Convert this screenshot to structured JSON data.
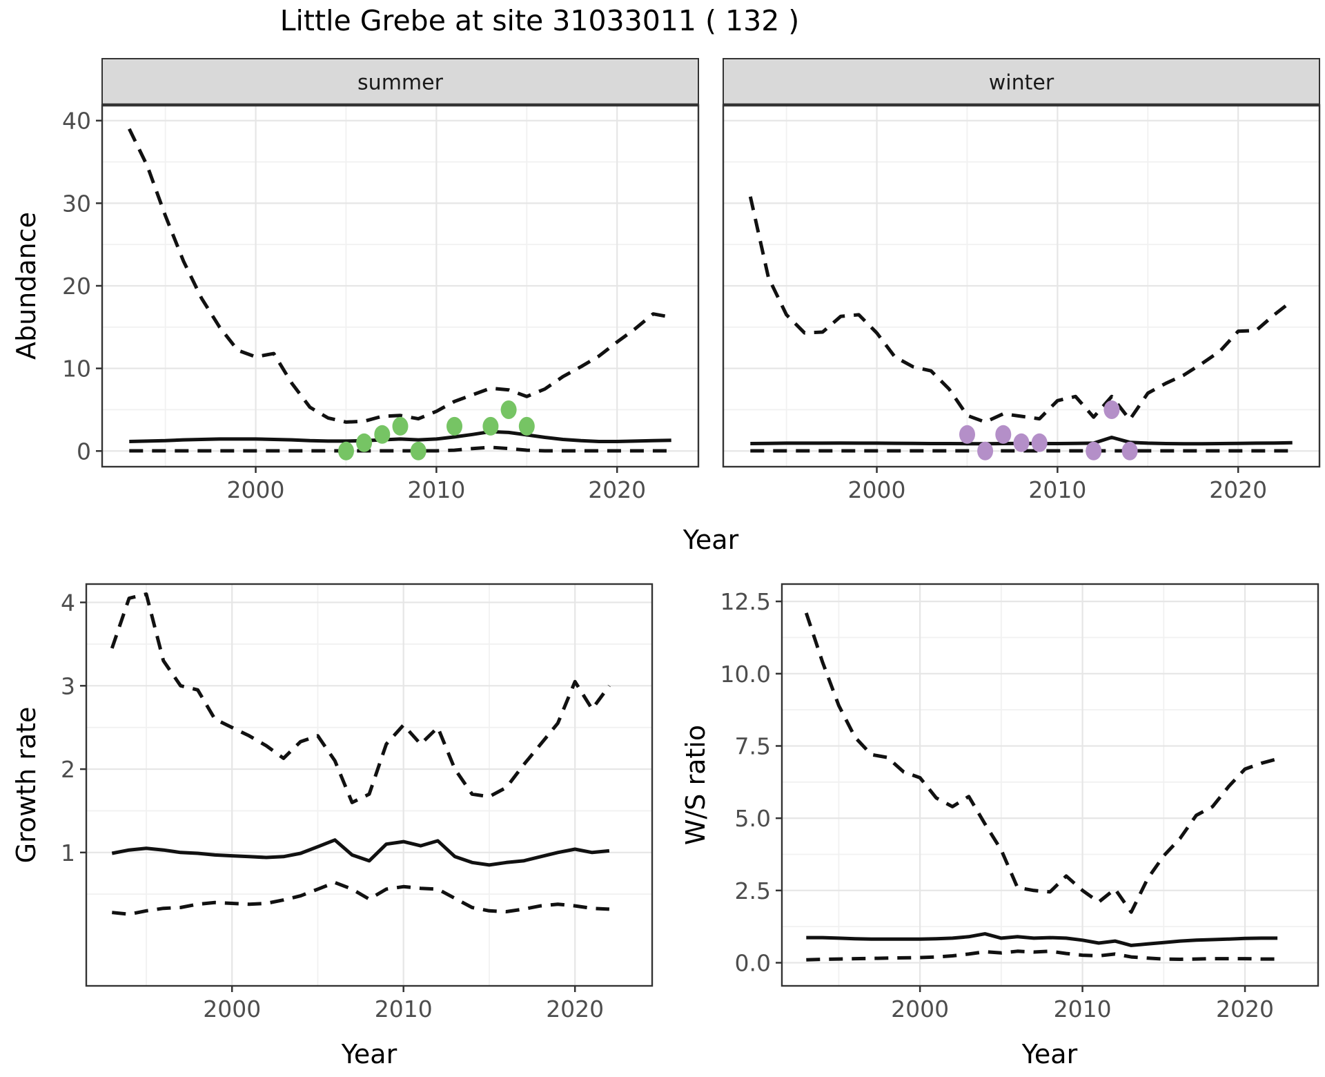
{
  "title": "Little Grebe at site 31033011 ( 132 )",
  "axes": {
    "abundance": "Abundance",
    "year_top": "Year",
    "growth_rate": "Growth rate",
    "ws_ratio": "W/S ratio",
    "year_bottom_left": "Year",
    "year_bottom_right": "Year"
  },
  "colors": {
    "summer_points": "#76c464",
    "winter_points": "#b48fc8",
    "line": "#111111",
    "strip_bg": "#d9d9d9",
    "strip_text": "#1a1a1a",
    "grid_major": "#e6e6e6",
    "grid_minor": "#f1f1f1",
    "border": "#333333",
    "tick_text": "#4d4d4d"
  },
  "chart_data": [
    {
      "id": "abundance-summer",
      "type": "line",
      "facet_label": "summer",
      "ylabel": "Abundance",
      "xlabel": "Year",
      "xlim": [
        1991.5,
        2024.5
      ],
      "ylim": [
        -1.9,
        41.9
      ],
      "x_tick_values": [
        2000,
        2010,
        2020
      ],
      "x_tick_labels": [
        "2000",
        "2010",
        "2020"
      ],
      "x_minor": [
        1995,
        2005,
        2015
      ],
      "y_tick_values": [
        0,
        10,
        20,
        30,
        40
      ],
      "y_tick_labels": [
        "0",
        "10",
        "20",
        "30",
        "40"
      ],
      "y_minor": [
        5,
        15,
        25,
        35
      ],
      "series": [
        {
          "name": "upper-ci",
          "style": "dashed",
          "x": [
            1993,
            1994,
            1995,
            1996,
            1997,
            1998,
            1999,
            2000,
            2001,
            2002,
            2003,
            2004,
            2005,
            2006,
            2007,
            2008,
            2009,
            2010,
            2011,
            2012,
            2013,
            2014,
            2015,
            2016,
            2017,
            2018,
            2019,
            2020,
            2021,
            2022,
            2023
          ],
          "y": [
            39,
            34.5,
            28.5,
            23,
            18.5,
            15,
            12.2,
            11.4,
            11.8,
            8.2,
            5.3,
            4.0,
            3.5,
            3.6,
            4.2,
            4.3,
            3.9,
            4.8,
            6.0,
            6.8,
            7.6,
            7.4,
            6.6,
            7.5,
            9.0,
            10.2,
            11.5,
            13.2,
            14.8,
            16.6,
            16.2
          ]
        },
        {
          "name": "median",
          "style": "solid",
          "x": [
            1993,
            1994,
            1995,
            1996,
            1997,
            1998,
            1999,
            2000,
            2001,
            2002,
            2003,
            2004,
            2005,
            2006,
            2007,
            2008,
            2009,
            2010,
            2011,
            2012,
            2013,
            2014,
            2015,
            2016,
            2017,
            2018,
            2019,
            2020,
            2021,
            2022,
            2023
          ],
          "y": [
            1.15,
            1.2,
            1.25,
            1.35,
            1.4,
            1.45,
            1.45,
            1.45,
            1.4,
            1.35,
            1.25,
            1.2,
            1.2,
            1.25,
            1.35,
            1.45,
            1.35,
            1.45,
            1.7,
            2.0,
            2.35,
            2.25,
            1.95,
            1.65,
            1.4,
            1.25,
            1.15,
            1.15,
            1.2,
            1.25,
            1.3
          ]
        },
        {
          "name": "lower-ci",
          "style": "dashed",
          "x": [
            1993,
            1994,
            1995,
            1996,
            1997,
            1998,
            1999,
            2000,
            2001,
            2002,
            2003,
            2004,
            2005,
            2006,
            2007,
            2008,
            2009,
            2010,
            2011,
            2012,
            2013,
            2014,
            2015,
            2016,
            2017,
            2018,
            2019,
            2020,
            2021,
            2022,
            2023
          ],
          "y": [
            0.02,
            0.02,
            0.02,
            0.02,
            0.02,
            0.02,
            0.02,
            0.02,
            0.02,
            0.02,
            0.02,
            0.02,
            0.02,
            0.02,
            0.02,
            0.02,
            0.02,
            0.02,
            0.1,
            0.3,
            0.45,
            0.3,
            0.1,
            0.02,
            0.02,
            0.02,
            0.02,
            0.02,
            0.02,
            0.02,
            0.02
          ]
        }
      ],
      "points": {
        "name": "observed-counts-summer",
        "color_key": "summer_points",
        "x": [
          2005,
          2006,
          2007,
          2008,
          2009,
          2011,
          2013,
          2014,
          2015
        ],
        "y": [
          0,
          1,
          2,
          3,
          0,
          3,
          3,
          5,
          3
        ]
      }
    },
    {
      "id": "abundance-winter",
      "type": "line",
      "facet_label": "winter",
      "ylabel": "Abundance",
      "xlabel": "Year",
      "xlim": [
        1991.5,
        2024.5
      ],
      "ylim": [
        -1.9,
        41.9
      ],
      "x_tick_values": [
        2000,
        2010,
        2020
      ],
      "x_tick_labels": [
        "2000",
        "2010",
        "2020"
      ],
      "x_minor": [
        1995,
        2005,
        2015
      ],
      "y_tick_values": [
        0,
        10,
        20,
        30,
        40
      ],
      "y_tick_labels": [],
      "y_minor": [
        5,
        15,
        25,
        35
      ],
      "series": [
        {
          "name": "upper-ci",
          "style": "dashed",
          "x": [
            1993,
            1994,
            1995,
            1996,
            1997,
            1998,
            1999,
            2000,
            2001,
            2002,
            2003,
            2004,
            2005,
            2006,
            2007,
            2008,
            2009,
            2010,
            2011,
            2012,
            2013,
            2014,
            2015,
            2016,
            2017,
            2018,
            2019,
            2020,
            2021,
            2022,
            2023
          ],
          "y": [
            30.8,
            21,
            16.5,
            14.3,
            14.4,
            16.3,
            16.5,
            14.3,
            11.4,
            10.2,
            9.7,
            7.5,
            4.3,
            3.5,
            4.5,
            4.2,
            3.9,
            6.1,
            6.6,
            4.1,
            6.6,
            3.8,
            7.0,
            8.2,
            9.2,
            10.6,
            12.1,
            14.5,
            14.6,
            16.5,
            18.2
          ]
        },
        {
          "name": "median",
          "style": "solid",
          "x": [
            1993,
            1994,
            1995,
            1996,
            1997,
            1998,
            1999,
            2000,
            2001,
            2002,
            2003,
            2004,
            2005,
            2006,
            2007,
            2008,
            2009,
            2010,
            2011,
            2012,
            2013,
            2014,
            2015,
            2016,
            2017,
            2018,
            2019,
            2020,
            2021,
            2022,
            2023
          ],
          "y": [
            0.9,
            0.92,
            0.95,
            0.95,
            0.95,
            0.97,
            0.95,
            0.95,
            0.93,
            0.92,
            0.9,
            0.9,
            0.88,
            0.88,
            0.9,
            0.92,
            0.9,
            0.9,
            0.92,
            0.95,
            1.65,
            1.05,
            0.95,
            0.9,
            0.88,
            0.88,
            0.9,
            0.92,
            0.95,
            0.97,
            1.0
          ]
        },
        {
          "name": "lower-ci",
          "style": "dashed",
          "x": [
            1993,
            1994,
            1995,
            1996,
            1997,
            1998,
            1999,
            2000,
            2001,
            2002,
            2003,
            2004,
            2005,
            2006,
            2007,
            2008,
            2009,
            2010,
            2011,
            2012,
            2013,
            2014,
            2015,
            2016,
            2017,
            2018,
            2019,
            2020,
            2021,
            2022,
            2023
          ],
          "y": [
            0.02,
            0.02,
            0.02,
            0.02,
            0.02,
            0.02,
            0.02,
            0.02,
            0.02,
            0.02,
            0.02,
            0.02,
            0.02,
            0.02,
            0.02,
            0.02,
            0.02,
            0.02,
            0.02,
            0.02,
            0.02,
            0.02,
            0.02,
            0.02,
            0.02,
            0.02,
            0.02,
            0.02,
            0.02,
            0.02,
            0.02
          ]
        }
      ],
      "points": {
        "name": "observed-counts-winter",
        "color_key": "winter_points",
        "x": [
          2005,
          2006,
          2007,
          2008,
          2009,
          2012,
          2013,
          2014
        ],
        "y": [
          2,
          0,
          2,
          1,
          1,
          0,
          5,
          0
        ]
      }
    },
    {
      "id": "growth-rate",
      "type": "line",
      "facet_label": null,
      "ylabel": "Growth rate",
      "xlabel": "Year",
      "xlim": [
        1991.5,
        2024.5
      ],
      "ylim": [
        -0.6,
        4.22
      ],
      "x_tick_values": [
        2000,
        2010,
        2020
      ],
      "x_tick_labels": [
        "2000",
        "2010",
        "2020"
      ],
      "x_minor": [
        1995,
        2005,
        2015
      ],
      "y_tick_values": [
        1,
        2,
        3,
        4
      ],
      "y_tick_labels": [
        "1",
        "2",
        "3",
        "4"
      ],
      "y_minor": [
        0.5,
        1.5,
        2.5,
        3.5
      ],
      "series": [
        {
          "name": "upper-ci",
          "style": "dashed",
          "x": [
            1993,
            1994,
            1995,
            1996,
            1997,
            1998,
            1999,
            2000,
            2001,
            2002,
            2003,
            2004,
            2005,
            2006,
            2007,
            2008,
            2009,
            2010,
            2011,
            2012,
            2013,
            2014,
            2015,
            2016,
            2017,
            2018,
            2019,
            2020,
            2021,
            2022
          ],
          "y": [
            3.45,
            4.05,
            4.1,
            3.3,
            3.0,
            2.95,
            2.6,
            2.5,
            2.4,
            2.28,
            2.13,
            2.33,
            2.4,
            2.1,
            1.6,
            1.7,
            2.3,
            2.53,
            2.3,
            2.5,
            2.0,
            1.7,
            1.67,
            1.78,
            2.05,
            2.3,
            2.55,
            3.05,
            2.72,
            3.0
          ]
        },
        {
          "name": "median",
          "style": "solid",
          "x": [
            1993,
            1994,
            1995,
            1996,
            1997,
            1998,
            1999,
            2000,
            2001,
            2002,
            2003,
            2004,
            2005,
            2006,
            2007,
            2008,
            2009,
            2010,
            2011,
            2012,
            2013,
            2014,
            2015,
            2016,
            2017,
            2018,
            2019,
            2020,
            2021,
            2022
          ],
          "y": [
            0.99,
            1.03,
            1.05,
            1.03,
            1.0,
            0.99,
            0.97,
            0.96,
            0.95,
            0.94,
            0.95,
            0.99,
            1.07,
            1.15,
            0.97,
            0.9,
            1.1,
            1.13,
            1.08,
            1.14,
            0.95,
            0.88,
            0.85,
            0.88,
            0.9,
            0.95,
            1.0,
            1.04,
            1.0,
            1.02
          ]
        },
        {
          "name": "lower-ci",
          "style": "dashed",
          "x": [
            1993,
            1994,
            1995,
            1996,
            1997,
            1998,
            1999,
            2000,
            2001,
            2002,
            2003,
            2004,
            2005,
            2006,
            2007,
            2008,
            2009,
            2010,
            2011,
            2012,
            2013,
            2014,
            2015,
            2016,
            2017,
            2018,
            2019,
            2020,
            2021,
            2022
          ],
          "y": [
            0.28,
            0.26,
            0.3,
            0.33,
            0.34,
            0.38,
            0.4,
            0.39,
            0.38,
            0.39,
            0.43,
            0.48,
            0.56,
            0.64,
            0.56,
            0.44,
            0.56,
            0.59,
            0.57,
            0.56,
            0.45,
            0.34,
            0.3,
            0.29,
            0.32,
            0.36,
            0.38,
            0.36,
            0.33,
            0.32
          ]
        }
      ],
      "points": null
    },
    {
      "id": "ws-ratio",
      "type": "line",
      "facet_label": null,
      "ylabel": "W/S ratio",
      "xlabel": "Year",
      "xlim": [
        1991.5,
        2024.5
      ],
      "ylim": [
        -0.8,
        13.1
      ],
      "x_tick_values": [
        2000,
        2010,
        2020
      ],
      "x_tick_labels": [
        "2000",
        "2010",
        "2020"
      ],
      "x_minor": [
        1995,
        2005,
        2015
      ],
      "y_tick_values": [
        0,
        2.5,
        5,
        7.5,
        10,
        12.5
      ],
      "y_tick_labels": [
        "0.0",
        "2.5",
        "5.0",
        "7.5",
        "10.0",
        "12.5"
      ],
      "y_minor": [
        1.25,
        3.75,
        6.25,
        8.75,
        11.25
      ],
      "series": [
        {
          "name": "upper-ci",
          "style": "dashed",
          "x": [
            1993,
            1994,
            1995,
            1996,
            1997,
            1998,
            1999,
            2000,
            2001,
            2002,
            2003,
            2004,
            2005,
            2006,
            2007,
            2008,
            2009,
            2010,
            2011,
            2012,
            2013,
            2014,
            2015,
            2016,
            2017,
            2018,
            2019,
            2020,
            2021,
            2022
          ],
          "y": [
            12.1,
            10.4,
            8.9,
            7.8,
            7.2,
            7.1,
            6.6,
            6.4,
            5.7,
            5.4,
            5.75,
            4.8,
            3.9,
            2.6,
            2.5,
            2.45,
            3.0,
            2.5,
            2.1,
            2.55,
            1.75,
            2.9,
            3.7,
            4.3,
            5.1,
            5.4,
            6.1,
            6.7,
            6.9,
            7.05
          ]
        },
        {
          "name": "median",
          "style": "solid",
          "x": [
            1993,
            1994,
            1995,
            1996,
            1997,
            1998,
            1999,
            2000,
            2001,
            2002,
            2003,
            2004,
            2005,
            2006,
            2007,
            2008,
            2009,
            2010,
            2011,
            2012,
            2013,
            2014,
            2015,
            2016,
            2017,
            2018,
            2019,
            2020,
            2021,
            2022
          ],
          "y": [
            0.87,
            0.87,
            0.85,
            0.83,
            0.82,
            0.82,
            0.82,
            0.82,
            0.83,
            0.85,
            0.9,
            1.0,
            0.85,
            0.9,
            0.85,
            0.87,
            0.85,
            0.78,
            0.68,
            0.75,
            0.6,
            0.65,
            0.7,
            0.75,
            0.78,
            0.8,
            0.82,
            0.84,
            0.85,
            0.85
          ]
        },
        {
          "name": "lower-ci",
          "style": "dashed",
          "x": [
            1993,
            1994,
            1995,
            1996,
            1997,
            1998,
            1999,
            2000,
            2001,
            2002,
            2003,
            2004,
            2005,
            2006,
            2007,
            2008,
            2009,
            2010,
            2011,
            2012,
            2013,
            2014,
            2015,
            2016,
            2017,
            2018,
            2019,
            2020,
            2021,
            2022
          ],
          "y": [
            0.1,
            0.12,
            0.13,
            0.14,
            0.15,
            0.16,
            0.17,
            0.18,
            0.2,
            0.24,
            0.3,
            0.38,
            0.34,
            0.4,
            0.37,
            0.4,
            0.32,
            0.26,
            0.24,
            0.3,
            0.2,
            0.16,
            0.13,
            0.12,
            0.13,
            0.14,
            0.14,
            0.14,
            0.13,
            0.13
          ]
        }
      ],
      "points": null
    }
  ]
}
